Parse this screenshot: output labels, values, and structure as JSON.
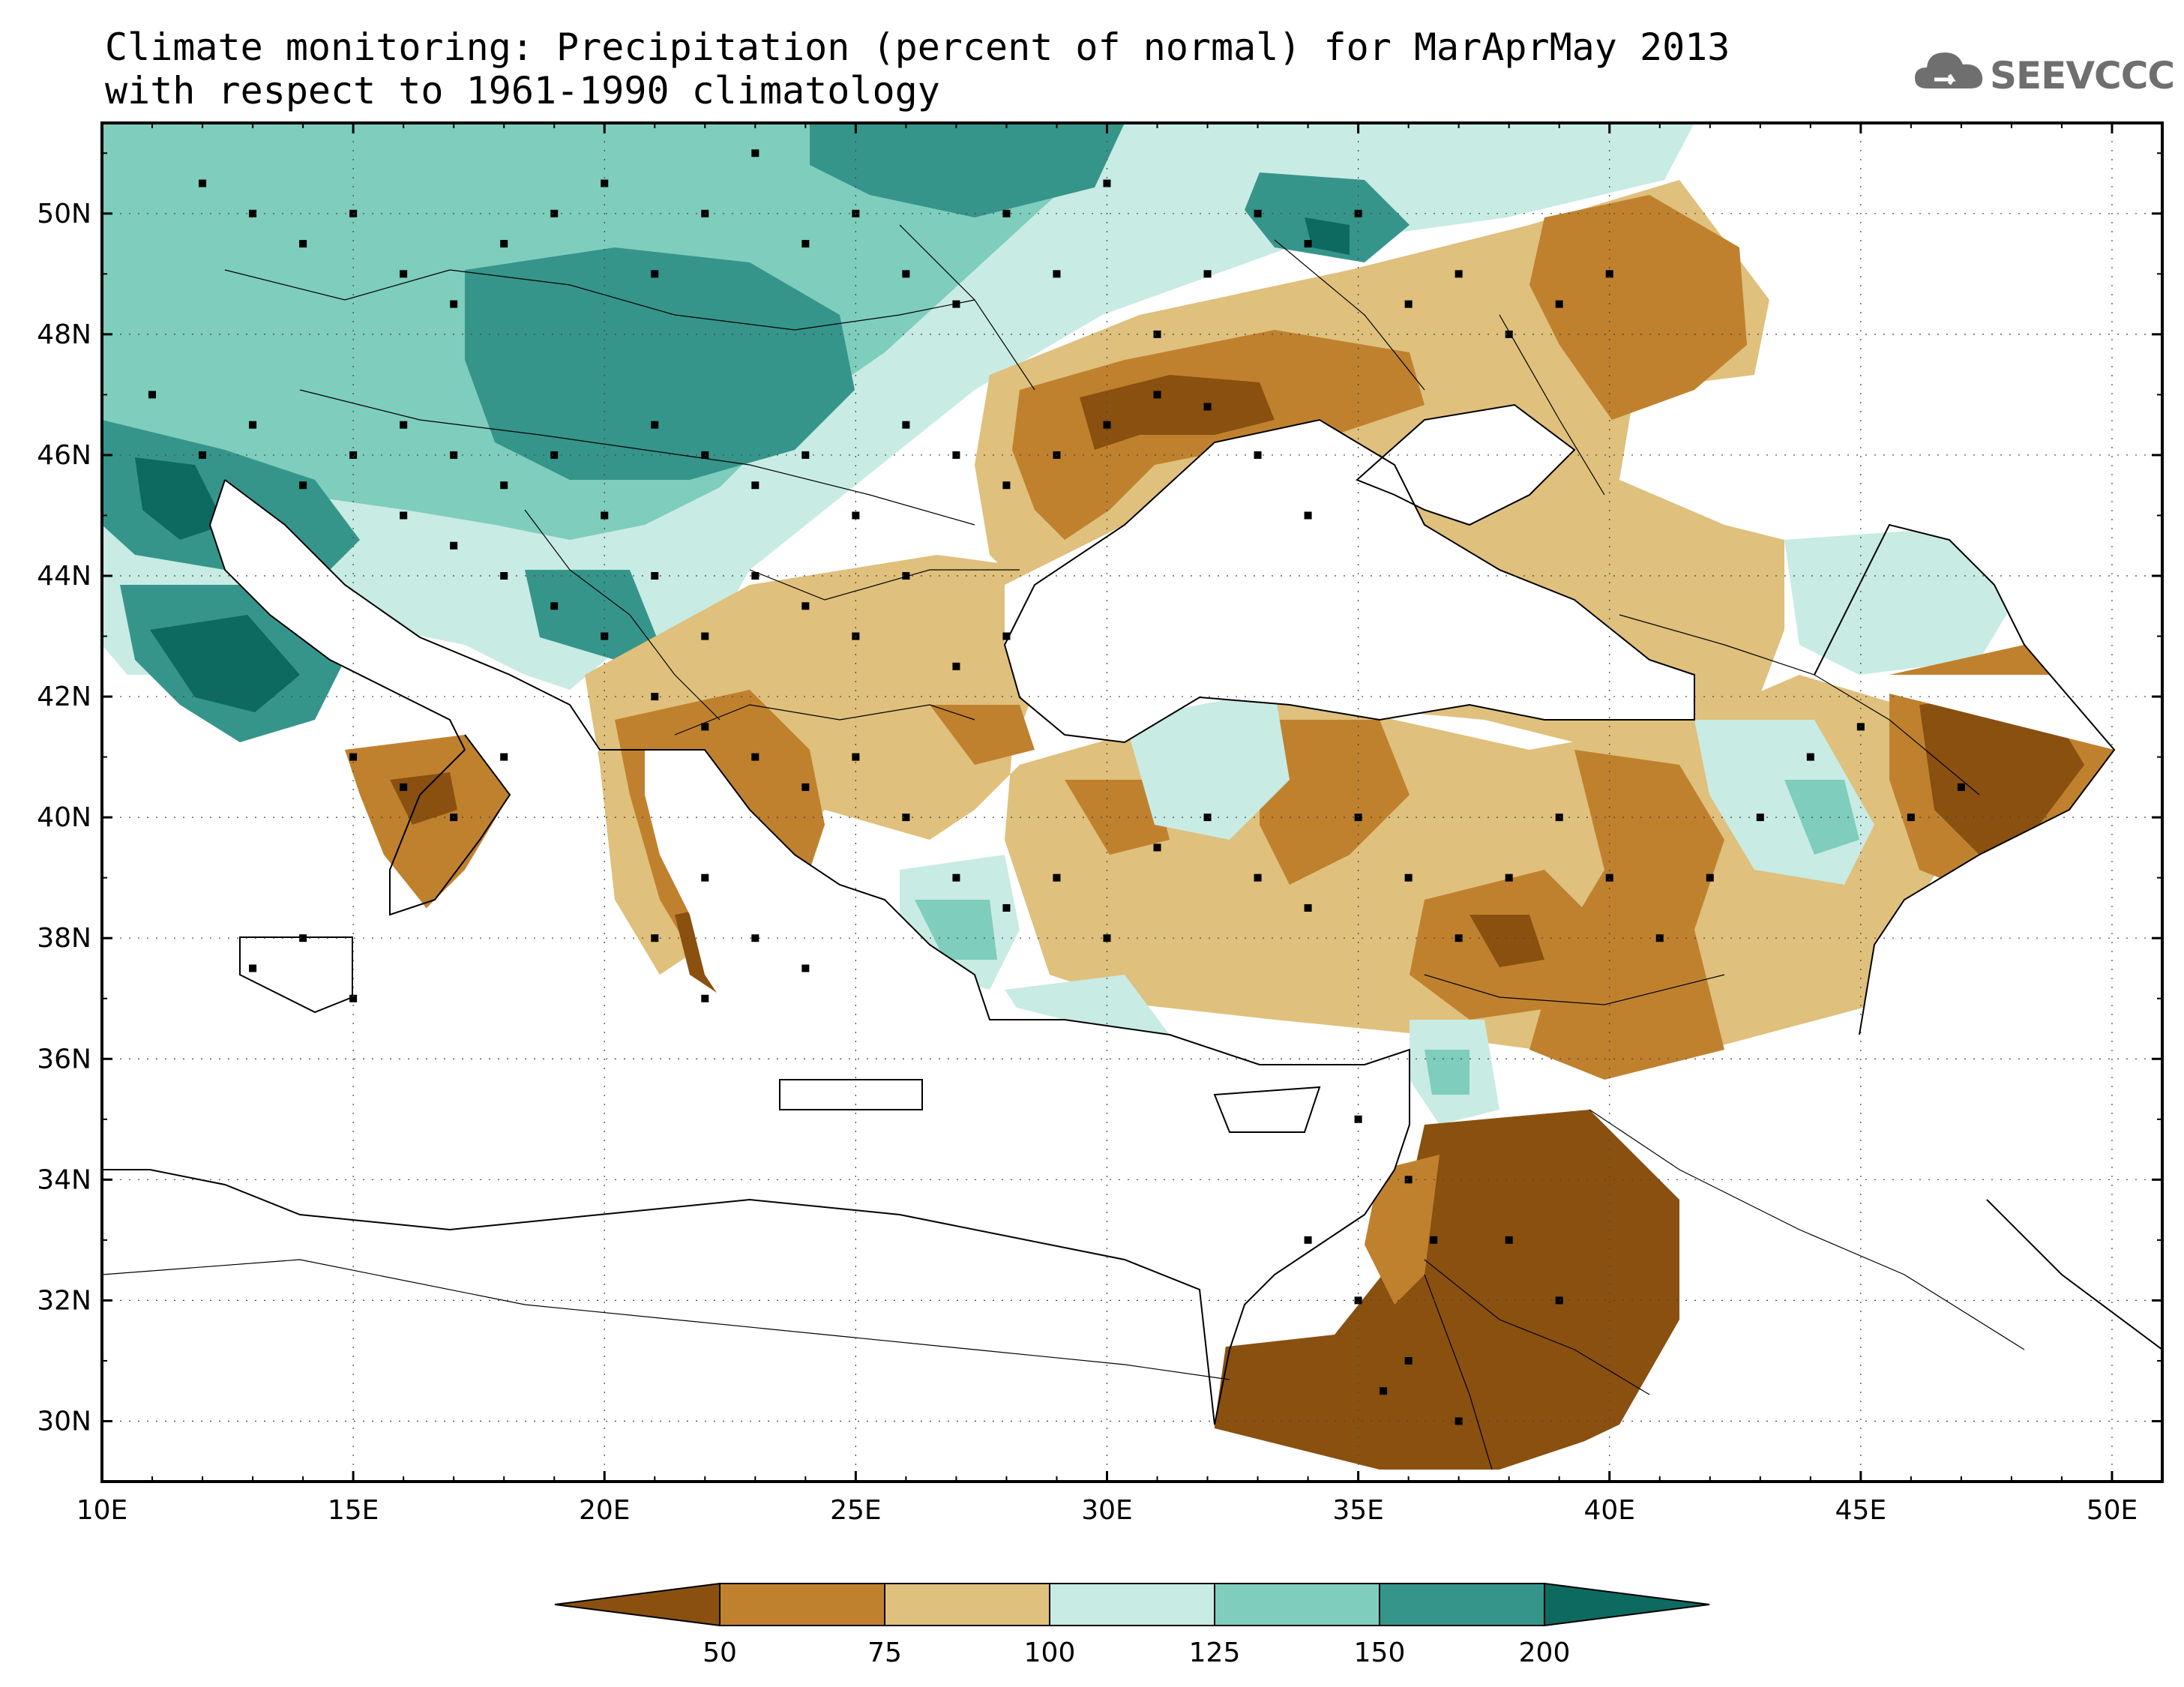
{
  "title": {
    "line1": "Climate monitoring: Precipitation (percent of normal) for MarAprMay 2013",
    "line2": "with respect to 1961-1990 climatology"
  },
  "logo": {
    "text": "SEEVCCC",
    "icon": "cloud-icon"
  },
  "map": {
    "lon_range": [
      10,
      51
    ],
    "lat_range": [
      29,
      51.5
    ],
    "lat_ticks": [
      "30N",
      "32N",
      "34N",
      "36N",
      "38N",
      "40N",
      "42N",
      "44N",
      "46N",
      "48N",
      "50N"
    ],
    "lon_ticks": [
      "10E",
      "15E",
      "20E",
      "25E",
      "30E",
      "35E",
      "40E",
      "45E",
      "50E"
    ],
    "grid": true
  },
  "legend": {
    "labels": [
      "50",
      "75",
      "100",
      "125",
      "150",
      "200"
    ],
    "colors": [
      "#8a5010",
      "#c0812e",
      "#dfc07c",
      "#c8ebe4",
      "#7fcdbc",
      "#36958b",
      "#0d6a60"
    ]
  }
}
